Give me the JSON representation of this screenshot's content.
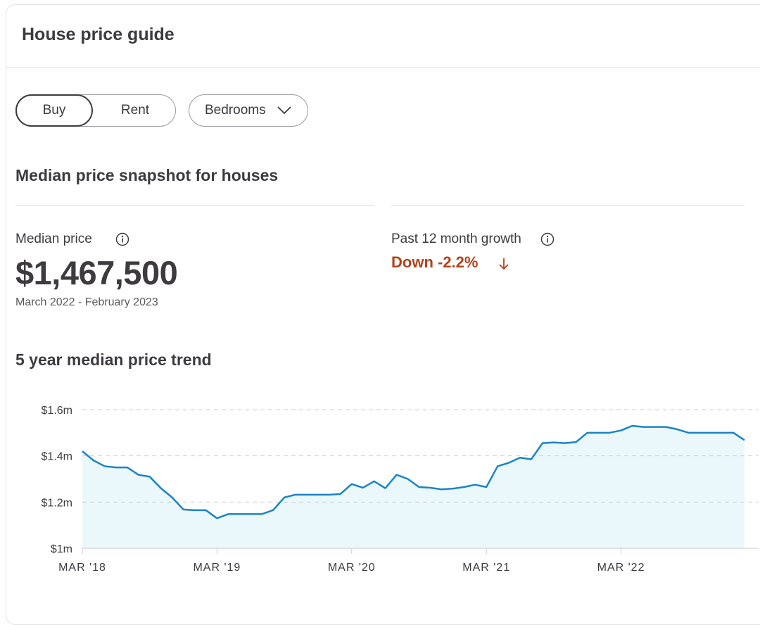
{
  "header": {
    "title": "House price guide"
  },
  "filters": {
    "buy_label": "Buy",
    "rent_label": "Rent",
    "bedrooms_label": "Bedrooms",
    "selected": "Buy"
  },
  "snapshot": {
    "title": "Median price snapshot for houses",
    "median_label": "Median price",
    "median_value": "$1,467,500",
    "median_period": "March 2022 - February 2023",
    "growth_label": "Past 12 month growth",
    "growth_value": "Down -2.2%"
  },
  "trend": {
    "title": "5 year median price trend"
  },
  "colors": {
    "line": "#1b84c6",
    "fill": "#eaf8fc",
    "down": "#b0431b",
    "text": "#3d3b40"
  },
  "chart_data": {
    "type": "area",
    "title": "5 year median price trend",
    "xlabel": "",
    "ylabel": "",
    "ylim": [
      1.0,
      1.6
    ],
    "y_ticks": [
      {
        "value": 1.0,
        "label": "$1m"
      },
      {
        "value": 1.2,
        "label": "$1.2m"
      },
      {
        "value": 1.4,
        "label": "$1.4m"
      },
      {
        "value": 1.6,
        "label": "$1.6m"
      }
    ],
    "x_ticks": [
      {
        "value": 0,
        "label": "MAR '18"
      },
      {
        "value": 12,
        "label": "MAR '19"
      },
      {
        "value": 24,
        "label": "MAR '20"
      },
      {
        "value": 36,
        "label": "MAR '21"
      },
      {
        "value": 48,
        "label": "MAR '22"
      }
    ],
    "xlim": [
      0,
      59
    ],
    "grid": true,
    "series": [
      {
        "unit": "$m",
        "points": [
          [
            0,
            1.42
          ],
          [
            1,
            1.38
          ],
          [
            2,
            1.355
          ],
          [
            3,
            1.35
          ],
          [
            4,
            1.35
          ],
          [
            5,
            1.318
          ],
          [
            6,
            1.31
          ],
          [
            7,
            1.26
          ],
          [
            8,
            1.22
          ],
          [
            9,
            1.168
          ],
          [
            10,
            1.165
          ],
          [
            11,
            1.165
          ],
          [
            12,
            1.13
          ],
          [
            13,
            1.148
          ],
          [
            14,
            1.148
          ],
          [
            15,
            1.148
          ],
          [
            16,
            1.148
          ],
          [
            17,
            1.165
          ],
          [
            18,
            1.22
          ],
          [
            19,
            1.232
          ],
          [
            20,
            1.232
          ],
          [
            21,
            1.232
          ],
          [
            22,
            1.232
          ],
          [
            23,
            1.235
          ],
          [
            24,
            1.278
          ],
          [
            25,
            1.262
          ],
          [
            26,
            1.29
          ],
          [
            27,
            1.26
          ],
          [
            28,
            1.318
          ],
          [
            29,
            1.3
          ],
          [
            30,
            1.265
          ],
          [
            31,
            1.262
          ],
          [
            32,
            1.255
          ],
          [
            33,
            1.258
          ],
          [
            34,
            1.265
          ],
          [
            35,
            1.275
          ],
          [
            36,
            1.265
          ],
          [
            37,
            1.355
          ],
          [
            38,
            1.37
          ],
          [
            39,
            1.392
          ],
          [
            40,
            1.385
          ],
          [
            41,
            1.455
          ],
          [
            42,
            1.458
          ],
          [
            43,
            1.455
          ],
          [
            44,
            1.46
          ],
          [
            45,
            1.5
          ],
          [
            46,
            1.5
          ],
          [
            47,
            1.5
          ],
          [
            48,
            1.51
          ],
          [
            49,
            1.53
          ],
          [
            50,
            1.525
          ],
          [
            51,
            1.525
          ],
          [
            52,
            1.525
          ],
          [
            53,
            1.515
          ],
          [
            54,
            1.5
          ],
          [
            55,
            1.5
          ],
          [
            56,
            1.5
          ],
          [
            57,
            1.5
          ],
          [
            58,
            1.5
          ],
          [
            59,
            1.468
          ]
        ]
      }
    ]
  }
}
